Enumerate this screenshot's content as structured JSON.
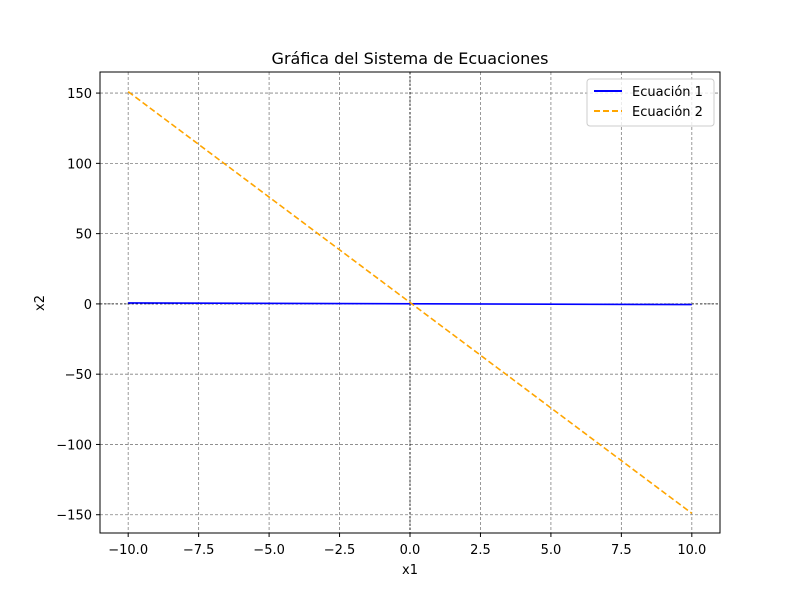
{
  "chart_data": {
    "type": "line",
    "title": "Gráfica del Sistema de Ecuaciones",
    "xlabel": "x1",
    "ylabel": "x2",
    "xlim": [
      -11,
      11
    ],
    "ylim": [
      -163,
      165
    ],
    "xticks": [
      -10,
      -7.5,
      -5,
      -2.5,
      0,
      2.5,
      5,
      7.5,
      10
    ],
    "xtick_labels": [
      "−10.0",
      "−7.5",
      "−5.0",
      "−2.5",
      "0.0",
      "2.5",
      "5.0",
      "7.5",
      "10.0"
    ],
    "yticks": [
      -150,
      -100,
      -50,
      0,
      50,
      100,
      150
    ],
    "ytick_labels": [
      "−150",
      "−100",
      "−50",
      "0",
      "50",
      "100",
      "150"
    ],
    "grid": true,
    "reference_lines": {
      "x": 0,
      "y": 0
    },
    "legend_position": "upper-right",
    "series": [
      {
        "name": "Ecuación 1",
        "color": "#0000ff",
        "style": "solid",
        "x": [
          -10,
          10
        ],
        "y": [
          0.7,
          -0.5
        ]
      },
      {
        "name": "Ecuación 2",
        "color": "#ffa500",
        "style": "dashed",
        "x": [
          -10,
          10
        ],
        "y": [
          151,
          -149
        ]
      }
    ]
  }
}
